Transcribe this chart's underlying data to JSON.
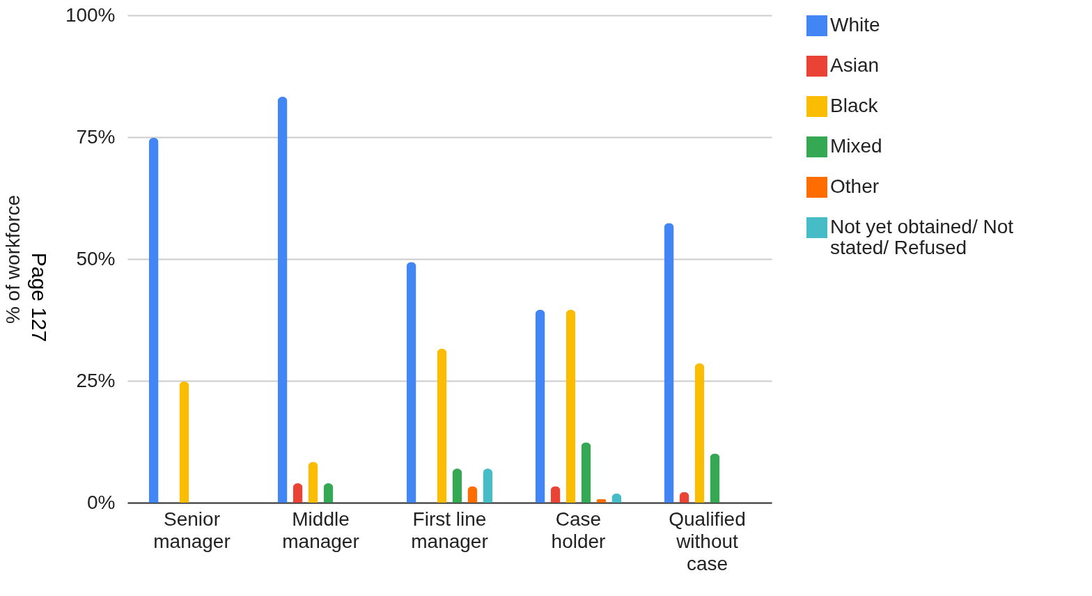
{
  "chart_data": {
    "type": "bar",
    "ylabel": "% of workforce",
    "categories": [
      "Senior\nmanager",
      "Middle\nmanager",
      "First line\nmanager",
      "Case\nholder",
      "Qualified\nwithout\ncase"
    ],
    "series": [
      {
        "name": "White",
        "color": "#4285f4",
        "values": [
          74.9,
          83.3,
          49.4,
          39.6,
          57.4
        ]
      },
      {
        "name": "Asian",
        "color": "#ea4335",
        "values": [
          null,
          4.0,
          null,
          3.4,
          2.2
        ]
      },
      {
        "name": "Black",
        "color": "#fbbc04",
        "values": [
          24.9,
          8.4,
          31.6,
          39.6,
          28.6
        ]
      },
      {
        "name": "Mixed",
        "color": "#34a853",
        "values": [
          null,
          4.0,
          7.0,
          12.4,
          10.1
        ]
      },
      {
        "name": "Other",
        "color": "#ff6d01",
        "values": [
          null,
          null,
          3.4,
          0.7,
          null
        ]
      },
      {
        "name": "Not yet obtained/ Not stated/ Refused",
        "color": "#46bdc6",
        "values": [
          null,
          null,
          7.0,
          1.9,
          null
        ]
      }
    ],
    "ylim": [
      0,
      100
    ],
    "yticks": [
      {
        "value": 0,
        "label": "0%"
      },
      {
        "value": 25,
        "label": "25%"
      },
      {
        "value": 50,
        "label": "50%"
      },
      {
        "value": 75,
        "label": "75%"
      },
      {
        "value": 100,
        "label": "100%"
      }
    ],
    "grid": "y",
    "legend": "top right",
    "annotations": [
      "Page 127"
    ]
  }
}
